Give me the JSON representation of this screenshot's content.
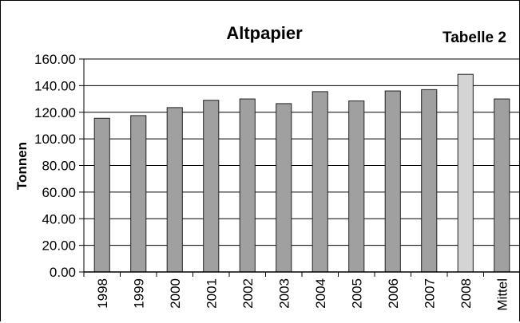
{
  "chart_data": {
    "type": "bar",
    "title": "Altpapier",
    "tag": "Tabelle 2",
    "ylabel": "Tonnen",
    "xlabel": "",
    "categories": [
      "1998",
      "1999",
      "2000",
      "2001",
      "2002",
      "2003",
      "2004",
      "2005",
      "2006",
      "2007",
      "2008",
      "Mittel"
    ],
    "values": [
      115.5,
      117.5,
      123.5,
      129.0,
      130.0,
      126.5,
      135.5,
      128.5,
      136.0,
      137.0,
      148.5,
      130.0
    ],
    "highlight_index": 10,
    "ylim": [
      0,
      160
    ],
    "yticks": [
      "0.00",
      "20.00",
      "40.00",
      "60.00",
      "80.00",
      "100.00",
      "120.00",
      "140.00",
      "160.00"
    ],
    "grid": true,
    "colors": {
      "bar": "#a0a0a0",
      "highlight": "#d4d4d4",
      "grid": "#000000"
    }
  }
}
